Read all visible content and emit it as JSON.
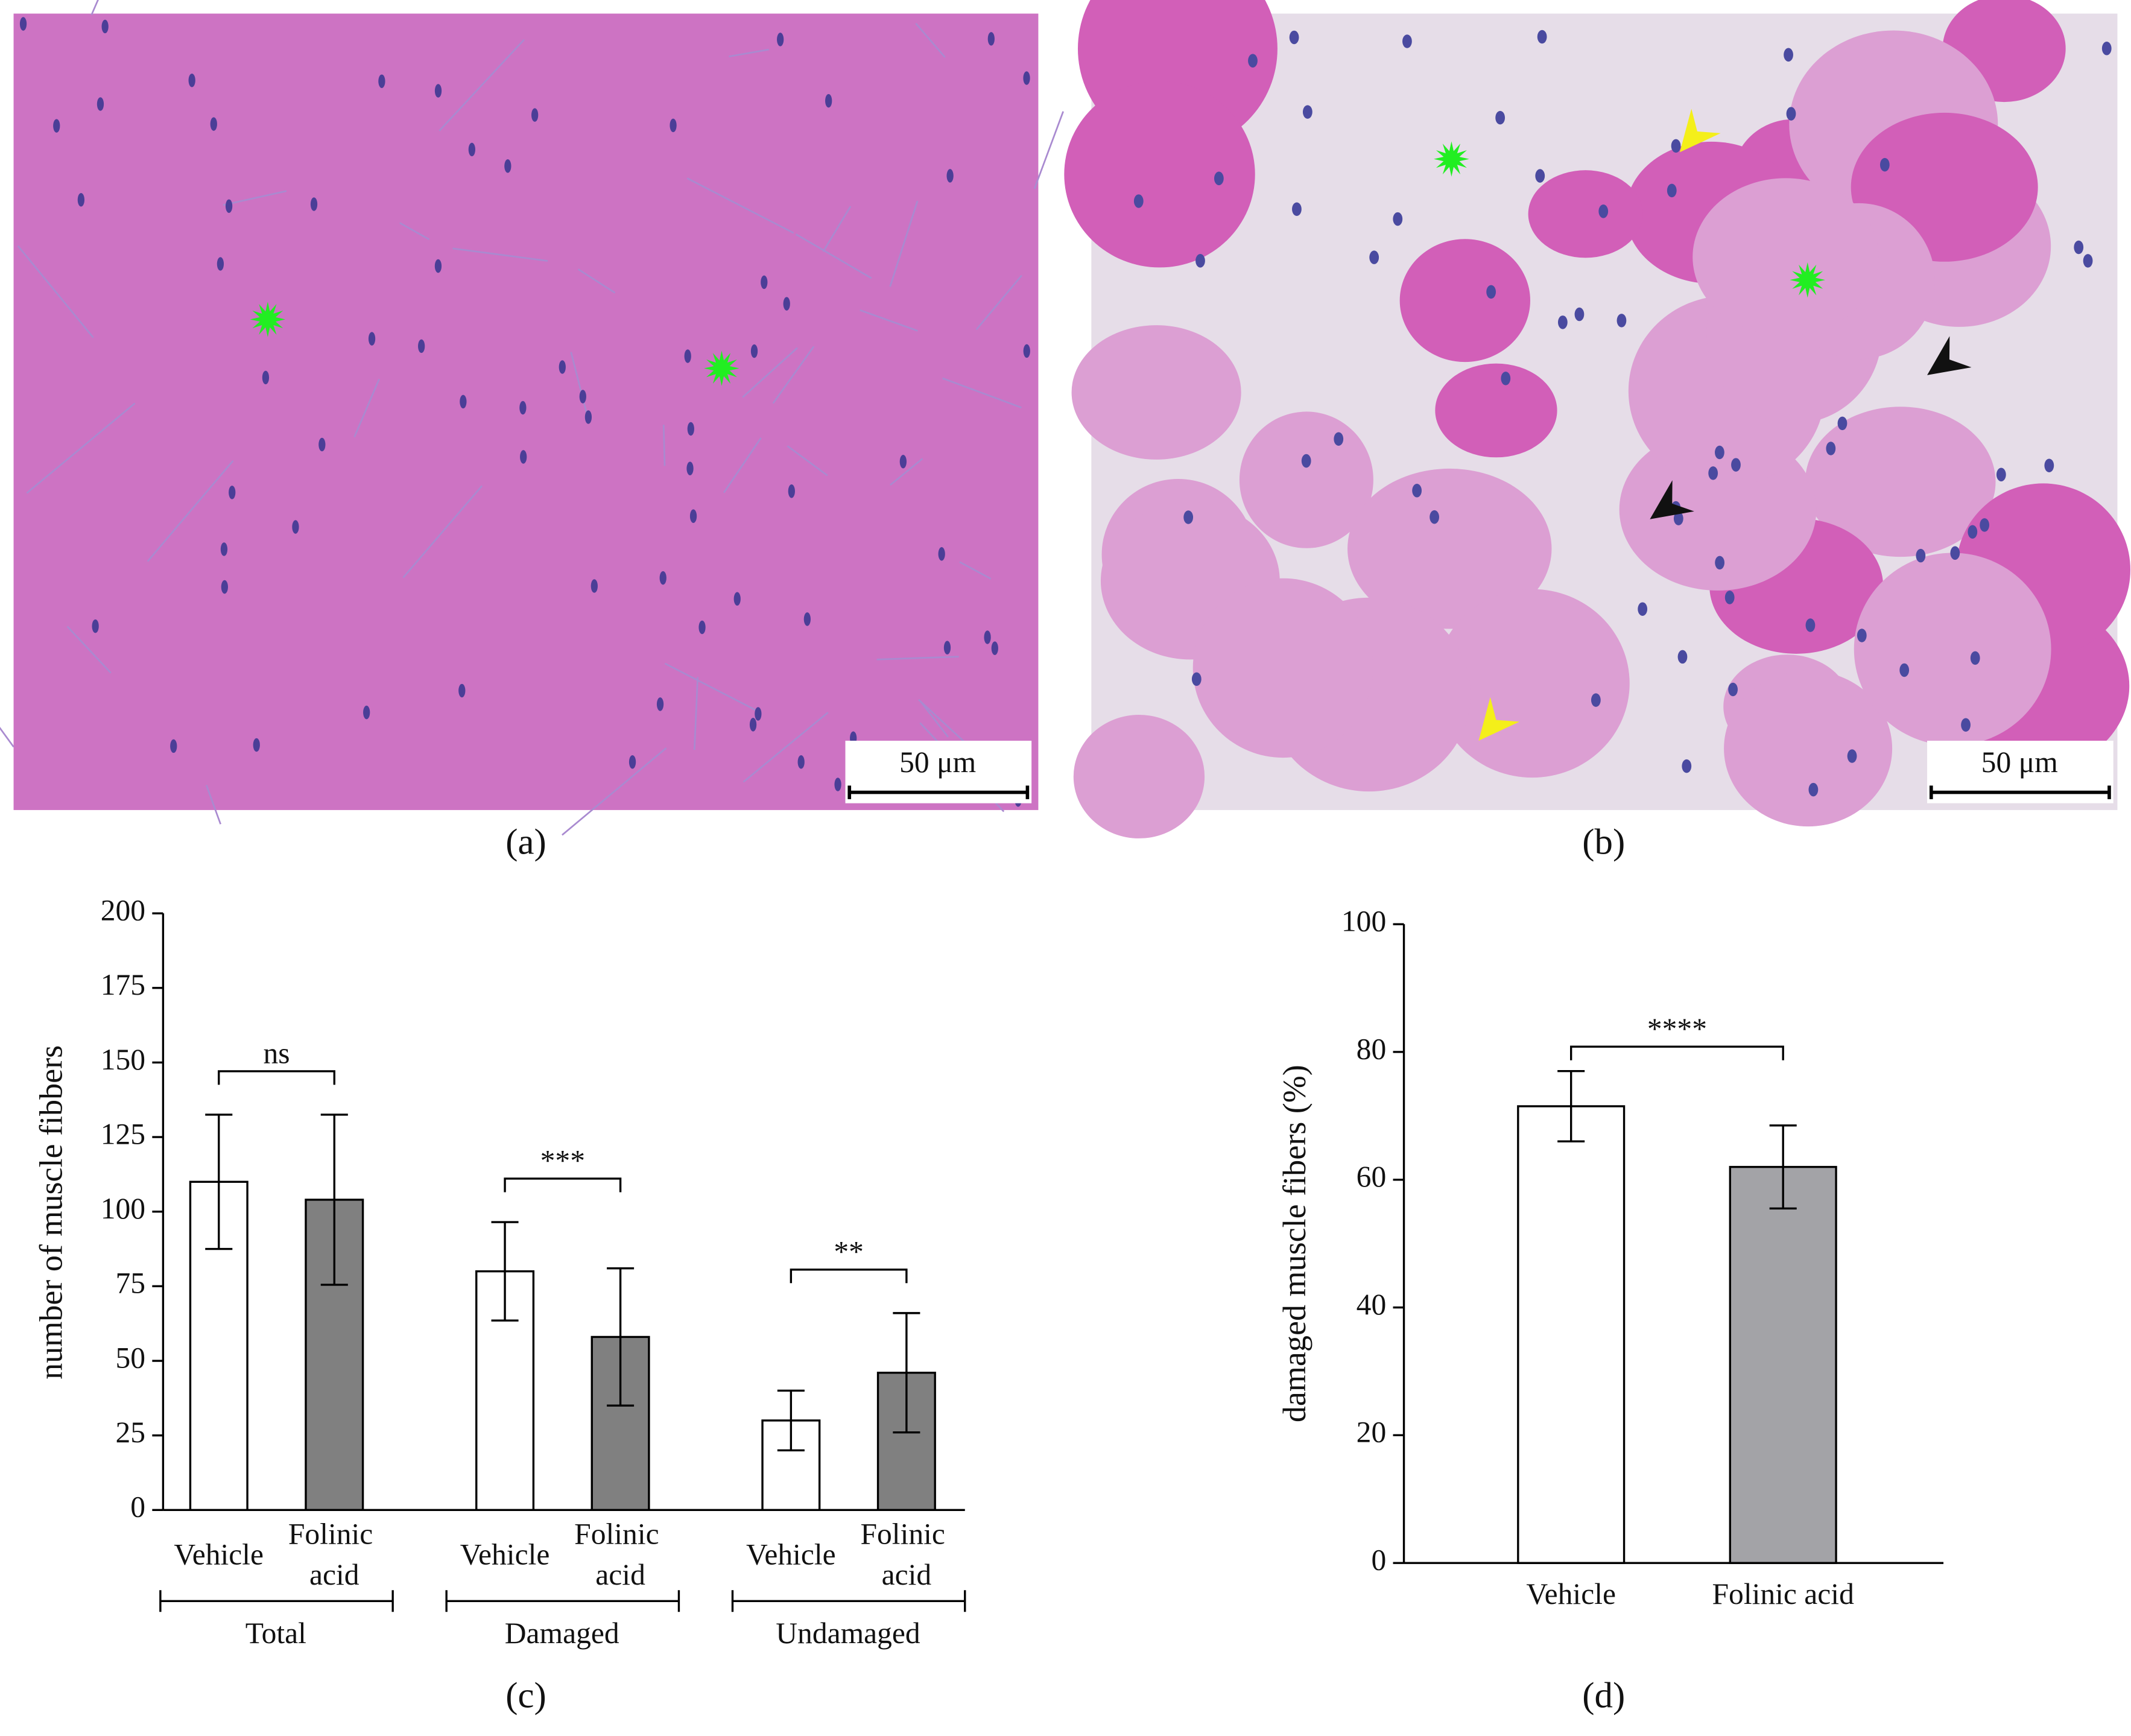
{
  "panels": [
    {
      "label": "(a)",
      "scale_bar": "50 μm"
    },
    {
      "label": "(b)",
      "scale_bar": "50 μm"
    }
  ],
  "chart_data": [
    {
      "type": "grouped_bar",
      "label": "(c)",
      "y_label": "number of muscle fibbers",
      "categories": [
        "Total",
        "Damaged",
        "Undamaged"
      ],
      "series": [
        {
          "name": "Vehicle",
          "color": "#ffffff",
          "values": [
            110,
            80,
            30
          ],
          "errors": [
            22.5,
            16.5,
            10
          ]
        },
        {
          "name": "Folinic acid",
          "color": "#808080",
          "values": [
            104,
            58,
            46
          ],
          "errors": [
            28.5,
            23,
            20
          ]
        }
      ],
      "significance": [
        "ns",
        "***",
        "**"
      ],
      "ylim": [
        0,
        200
      ],
      "yticks": [
        0,
        25,
        50,
        75,
        100,
        125,
        150,
        175,
        200
      ]
    },
    {
      "type": "bar",
      "label": "(d)",
      "y_label": "damaged muscle fibers (%)",
      "categories": [
        "Vehicle",
        "Folinic acid"
      ],
      "values": [
        71.5,
        62
      ],
      "errors": [
        5.5,
        6.5
      ],
      "colors": [
        "#ffffff",
        "#a3a3a7"
      ],
      "significance": [
        "****"
      ],
      "ylim": [
        0,
        100
      ],
      "yticks": [
        0,
        20,
        40,
        60,
        80,
        100
      ]
    }
  ]
}
